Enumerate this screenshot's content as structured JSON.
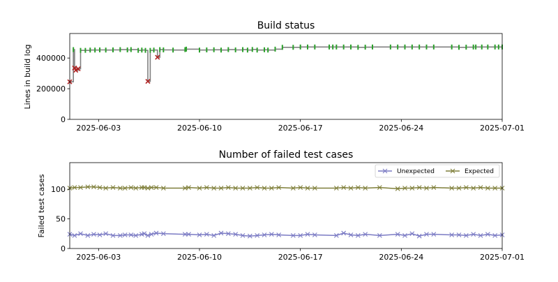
{
  "chart_data": [
    {
      "type": "line",
      "title": "Build status",
      "ylabel": "Lines in build log",
      "xlabel": "",
      "xlim": [
        "2025-06-01",
        "2025-07-01"
      ],
      "ylim": [
        0,
        560000
      ],
      "yticks": [
        0,
        200000,
        400000
      ],
      "xticks": [
        "2025-06-03",
        "2025-06-10",
        "2025-06-17",
        "2025-06-24",
        "2025-07-01"
      ],
      "grid": false,
      "colors": {
        "line": "#808080",
        "pass": "#2ca02c",
        "fail": "#b22222"
      },
      "series": [
        {
          "x": [
            "2025-06-01T00:00",
            "2025-06-01T06:00",
            "2025-06-01T08:00",
            "2025-06-01T10:00",
            "2025-06-01T14:00",
            "2025-06-01T18:00",
            "2025-06-02T02:00",
            "2025-06-02T10:00",
            "2025-06-02T18:00",
            "2025-06-03T02:00",
            "2025-06-03T12:00",
            "2025-06-04T00:00",
            "2025-06-04T12:00",
            "2025-06-05T00:00",
            "2025-06-05T06:00",
            "2025-06-05T18:00",
            "2025-06-06T00:00",
            "2025-06-06T06:00",
            "2025-06-06T10:00",
            "2025-06-06T14:00",
            "2025-06-06T20:00",
            "2025-06-07T02:00",
            "2025-06-07T06:00",
            "2025-06-07T12:00",
            "2025-06-08T04:00",
            "2025-06-09T00:00",
            "2025-06-09T02:00",
            "2025-06-10T00:00",
            "2025-06-10T12:00",
            "2025-06-11T00:00",
            "2025-06-11T12:00",
            "2025-06-12T00:00",
            "2025-06-12T12:00",
            "2025-06-13T00:00",
            "2025-06-13T08:00",
            "2025-06-13T16:00",
            "2025-06-14T00:00",
            "2025-06-14T12:00",
            "2025-06-14T18:00",
            "2025-06-15T06:00",
            "2025-06-15T18:00",
            "2025-06-16T12:00",
            "2025-06-17T00:00",
            "2025-06-17T12:00",
            "2025-06-18T00:00",
            "2025-06-19T00:00",
            "2025-06-19T06:00",
            "2025-06-19T12:00",
            "2025-06-20T00:00",
            "2025-06-20T12:00",
            "2025-06-21T00:00",
            "2025-06-21T12:00",
            "2025-06-22T00:00",
            "2025-06-23T06:00",
            "2025-06-23T18:00",
            "2025-06-24T06:00",
            "2025-06-24T18:00",
            "2025-06-25T06:00",
            "2025-06-25T18:00",
            "2025-06-26T06:00",
            "2025-06-27T12:00",
            "2025-06-28T00:00",
            "2025-06-28T12:00",
            "2025-06-29T00:00",
            "2025-06-29T04:00",
            "2025-06-29T14:00",
            "2025-06-30T00:00",
            "2025-06-30T12:00",
            "2025-06-30T18:00",
            "2025-07-01T00:00"
          ],
          "y": [
            245000,
            455000,
            335000,
            320000,
            330000,
            450000,
            450000,
            452000,
            452000,
            453000,
            452000,
            453000,
            455000,
            453000,
            455000,
            450000,
            452000,
            450000,
            248000,
            450000,
            452000,
            405000,
            455000,
            453000,
            452000,
            455000,
            458000,
            452000,
            453000,
            454000,
            452000,
            455000,
            453000,
            455000,
            452000,
            456000,
            452000,
            454000,
            452000,
            458000,
            470000,
            470000,
            472000,
            472000,
            472000,
            472000,
            472000,
            472000,
            472000,
            472000,
            470000,
            471000,
            472000,
            472000,
            472000,
            472000,
            472000,
            472000,
            472000,
            472000,
            472000,
            470000,
            471000,
            472000,
            472000,
            472000,
            472000,
            472000,
            472000,
            472000
          ],
          "status": [
            "fail",
            "pass",
            "fail",
            "fail",
            "fail",
            "pass",
            "pass",
            "pass",
            "pass",
            "pass",
            "pass",
            "pass",
            "pass",
            "pass",
            "pass",
            "pass",
            "pass",
            "pass",
            "fail",
            "pass",
            "pass",
            "fail",
            "pass",
            "pass",
            "pass",
            "pass",
            "pass",
            "pass",
            "pass",
            "pass",
            "pass",
            "pass",
            "pass",
            "pass",
            "pass",
            "pass",
            "pass",
            "pass",
            "pass",
            "pass",
            "pass",
            "pass",
            "pass",
            "pass",
            "pass",
            "pass",
            "pass",
            "pass",
            "pass",
            "pass",
            "pass",
            "pass",
            "pass",
            "pass",
            "pass",
            "pass",
            "pass",
            "pass",
            "pass",
            "pass",
            "pass",
            "pass",
            "pass",
            "pass",
            "pass",
            "pass",
            "pass",
            "pass",
            "pass",
            "pass"
          ]
        }
      ]
    },
    {
      "type": "line",
      "title": "Number of failed test cases",
      "ylabel": "Failed test cases",
      "xlabel": "",
      "xlim": [
        "2025-06-01",
        "2025-07-01"
      ],
      "ylim": [
        0,
        145
      ],
      "yticks": [
        0,
        50,
        100
      ],
      "xticks": [
        "2025-06-03",
        "2025-06-10",
        "2025-06-17",
        "2025-06-24",
        "2025-07-01"
      ],
      "grid": false,
      "legend_placement": "top-right",
      "x": [
        "2025-06-01T00:00",
        "2025-06-01T08:00",
        "2025-06-01T18:00",
        "2025-06-02T06:00",
        "2025-06-02T16:00",
        "2025-06-03T02:00",
        "2025-06-03T12:00",
        "2025-06-04T00:00",
        "2025-06-04T12:00",
        "2025-06-04T20:00",
        "2025-06-05T06:00",
        "2025-06-05T14:00",
        "2025-06-06T00:00",
        "2025-06-06T04:00",
        "2025-06-06T10:00",
        "2025-06-06T16:00",
        "2025-06-07T00:00",
        "2025-06-07T12:00",
        "2025-06-09T00:00",
        "2025-06-09T06:00",
        "2025-06-10T00:00",
        "2025-06-10T12:00",
        "2025-06-11T00:00",
        "2025-06-11T12:00",
        "2025-06-12T00:00",
        "2025-06-12T12:00",
        "2025-06-13T00:00",
        "2025-06-13T12:00",
        "2025-06-14T00:00",
        "2025-06-14T12:00",
        "2025-06-15T00:00",
        "2025-06-15T12:00",
        "2025-06-16T12:00",
        "2025-06-17T00:00",
        "2025-06-17T12:00",
        "2025-06-18T00:00",
        "2025-06-19T12:00",
        "2025-06-20T00:00",
        "2025-06-20T12:00",
        "2025-06-21T00:00",
        "2025-06-21T12:00",
        "2025-06-22T12:00",
        "2025-06-23T18:00",
        "2025-06-24T06:00",
        "2025-06-24T18:00",
        "2025-06-25T06:00",
        "2025-06-25T18:00",
        "2025-06-26T06:00",
        "2025-06-27T12:00",
        "2025-06-28T00:00",
        "2025-06-28T12:00",
        "2025-06-29T00:00",
        "2025-06-29T12:00",
        "2025-06-30T00:00",
        "2025-06-30T12:00",
        "2025-07-01T00:00"
      ],
      "series": [
        {
          "name": "Unexpected",
          "color": "#7b7bc4",
          "values": [
            24,
            22,
            25,
            22,
            24,
            23,
            25,
            22,
            22,
            23,
            23,
            22,
            24,
            25,
            22,
            24,
            26,
            25,
            24,
            24,
            23,
            24,
            22,
            26,
            25,
            24,
            22,
            21,
            22,
            23,
            24,
            23,
            22,
            22,
            24,
            23,
            22,
            26,
            23,
            22,
            24,
            22,
            24,
            22,
            25,
            21,
            24,
            24,
            23,
            23,
            22,
            24,
            22,
            24,
            22,
            23
          ]
        },
        {
          "name": "Expected",
          "color": "#7f7f3a",
          "values": [
            102,
            103,
            103,
            104,
            104,
            103,
            102,
            103,
            102,
            102,
            103,
            102,
            103,
            103,
            102,
            103,
            103,
            102,
            102,
            103,
            102,
            103,
            102,
            102,
            103,
            102,
            102,
            102,
            103,
            102,
            102,
            103,
            102,
            103,
            102,
            102,
            102,
            103,
            102,
            103,
            102,
            103,
            101,
            102,
            102,
            103,
            102,
            103,
            102,
            102,
            103,
            102,
            103,
            102,
            102,
            102
          ]
        }
      ]
    }
  ]
}
